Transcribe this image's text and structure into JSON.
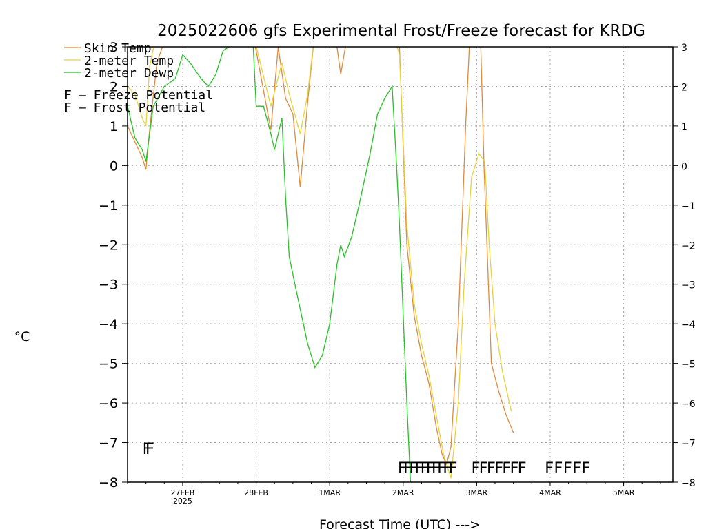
{
  "chart_data": {
    "type": "line",
    "title": "2025022606 gfs Experimental Frost/Freeze forecast for KRDG",
    "ylabel": "°C",
    "xlabel": "Forecast Time (UTC) --->",
    "ylim": [
      -8,
      3
    ],
    "xlim": [
      0,
      7.42
    ],
    "y_ticks": [
      "3",
      "2",
      "1",
      "0",
      "−1",
      "−2",
      "−3",
      "−4",
      "−5",
      "−6",
      "−7",
      "−8"
    ],
    "x_ticks": [
      {
        "label": "27FEB",
        "sub": "2025",
        "x": 0.75
      },
      {
        "label": "28FEB",
        "sub": "",
        "x": 1.75
      },
      {
        "label": "1MAR",
        "sub": "",
        "x": 2.75
      },
      {
        "label": "2MAR",
        "sub": "",
        "x": 3.75
      },
      {
        "label": "3MAR",
        "sub": "",
        "x": 4.75
      },
      {
        "label": "4MAR",
        "sub": "",
        "x": 5.75
      },
      {
        "label": "5MAR",
        "sub": "",
        "x": 6.75
      }
    ],
    "grid": true,
    "legend_position": "top-left",
    "series": [
      {
        "name": "Skin Temp",
        "color": "#e08a3c",
        "points": [
          [
            0.0,
            1.0
          ],
          [
            0.1,
            0.6
          ],
          [
            0.2,
            0.2
          ],
          [
            0.25,
            -0.1
          ],
          [
            0.3,
            0.9
          ],
          [
            0.4,
            2.6
          ],
          [
            0.55,
            3.4
          ],
          [
            1.7,
            3.4
          ],
          [
            1.95,
            0.9
          ],
          [
            2.05,
            3.0
          ],
          [
            2.15,
            1.7
          ],
          [
            2.25,
            1.3
          ],
          [
            2.35,
            -0.55
          ],
          [
            2.45,
            1.6
          ],
          [
            2.55,
            3.4
          ],
          [
            2.85,
            3.0
          ],
          [
            2.9,
            2.3
          ],
          [
            3.0,
            3.4
          ],
          [
            3.5,
            3.4
          ],
          [
            3.6,
            3.4
          ],
          [
            3.7,
            3.0
          ],
          [
            3.8,
            -2.0
          ],
          [
            3.9,
            -3.8
          ],
          [
            4.0,
            -4.8
          ],
          [
            4.1,
            -5.5
          ],
          [
            4.2,
            -6.6
          ],
          [
            4.28,
            -7.3
          ],
          [
            4.34,
            -7.55
          ],
          [
            4.4,
            -7.1
          ],
          [
            4.5,
            -4.0
          ],
          [
            4.6,
            1.0
          ],
          [
            4.66,
            3.4
          ],
          [
            4.8,
            3.4
          ],
          [
            4.85,
            0.0
          ],
          [
            4.95,
            -5.0
          ],
          [
            5.05,
            -5.7
          ],
          [
            5.15,
            -6.3
          ],
          [
            5.25,
            -6.75
          ]
        ]
      },
      {
        "name": "2-meter Temp",
        "color": "#e6d23a",
        "points": [
          [
            0.0,
            2.0
          ],
          [
            0.1,
            1.8
          ],
          [
            0.2,
            1.2
          ],
          [
            0.25,
            1.0
          ],
          [
            0.3,
            2.5
          ],
          [
            0.4,
            3.4
          ],
          [
            1.7,
            3.4
          ],
          [
            1.95,
            1.5
          ],
          [
            2.1,
            2.6
          ],
          [
            2.2,
            1.8
          ],
          [
            2.35,
            0.8
          ],
          [
            2.45,
            1.8
          ],
          [
            2.55,
            3.4
          ],
          [
            3.6,
            3.4
          ],
          [
            3.7,
            2.8
          ],
          [
            3.8,
            -1.5
          ],
          [
            3.9,
            -3.5
          ],
          [
            4.0,
            -4.5
          ],
          [
            4.1,
            -5.3
          ],
          [
            4.2,
            -6.3
          ],
          [
            4.3,
            -7.3
          ],
          [
            4.4,
            -7.9
          ],
          [
            4.5,
            -6.0
          ],
          [
            4.58,
            -3.0
          ],
          [
            4.68,
            -0.3
          ],
          [
            4.78,
            0.3
          ],
          [
            4.86,
            0.1
          ],
          [
            4.92,
            -2.0
          ],
          [
            5.0,
            -4.0
          ],
          [
            5.1,
            -5.2
          ],
          [
            5.22,
            -6.2
          ]
        ]
      },
      {
        "name": "2-meter Dewp",
        "color": "#22c322",
        "points": [
          [
            0.0,
            1.5
          ],
          [
            0.1,
            0.7
          ],
          [
            0.2,
            0.4
          ],
          [
            0.25,
            0.1
          ],
          [
            0.35,
            1.5
          ],
          [
            0.5,
            2.0
          ],
          [
            0.65,
            2.2
          ],
          [
            0.75,
            2.8
          ],
          [
            0.85,
            2.6
          ],
          [
            1.0,
            2.2
          ],
          [
            1.1,
            2.0
          ],
          [
            1.2,
            2.3
          ],
          [
            1.3,
            2.9
          ],
          [
            1.7,
            3.4
          ],
          [
            1.75,
            1.5
          ],
          [
            1.85,
            1.5
          ],
          [
            1.95,
            0.8
          ],
          [
            2.0,
            0.4
          ],
          [
            2.1,
            1.2
          ],
          [
            2.15,
            -0.8
          ],
          [
            2.2,
            -2.3
          ],
          [
            2.3,
            -3.2
          ],
          [
            2.45,
            -4.5
          ],
          [
            2.55,
            -5.1
          ],
          [
            2.65,
            -4.8
          ],
          [
            2.75,
            -4.0
          ],
          [
            2.85,
            -2.5
          ],
          [
            2.9,
            -2.0
          ],
          [
            2.95,
            -2.3
          ],
          [
            3.05,
            -1.8
          ],
          [
            3.15,
            -1.0
          ],
          [
            3.3,
            0.3
          ],
          [
            3.4,
            1.3
          ],
          [
            3.5,
            1.7
          ],
          [
            3.6,
            2.0
          ],
          [
            3.66,
            0.0
          ],
          [
            3.7,
            -1.5
          ],
          [
            3.8,
            -6.0
          ],
          [
            3.85,
            -8.0
          ]
        ]
      }
    ],
    "frost_marks": {
      "label": "F",
      "color": "#4455cc",
      "x": [
        0.2,
        0.24
      ],
      "y": -7.15
    },
    "freeze_marks": {
      "label": "F",
      "color": "#cc3399",
      "groups": [
        {
          "x_start": 3.73,
          "x_end": 4.42,
          "count": 10
        },
        {
          "x_start": 4.73,
          "x_end": 5.36,
          "count": 7
        },
        {
          "x_start": 5.73,
          "x_end": 6.23,
          "count": 5
        }
      ],
      "y": -7.6
    },
    "legend": [
      {
        "label": "Skin Temp",
        "color": "#e08a3c",
        "kind": "line"
      },
      {
        "label": "2-meter Temp",
        "color": "#e6d23a",
        "kind": "line"
      },
      {
        "label": "2-meter Dewp",
        "color": "#22c322",
        "kind": "line"
      },
      {
        "label": "F",
        "text": "– Freeze Potential",
        "color": "#cc3399",
        "kind": "letter"
      },
      {
        "label": "F",
        "text": "– Frost Potential",
        "color": "#4455cc",
        "kind": "letter"
      }
    ]
  }
}
